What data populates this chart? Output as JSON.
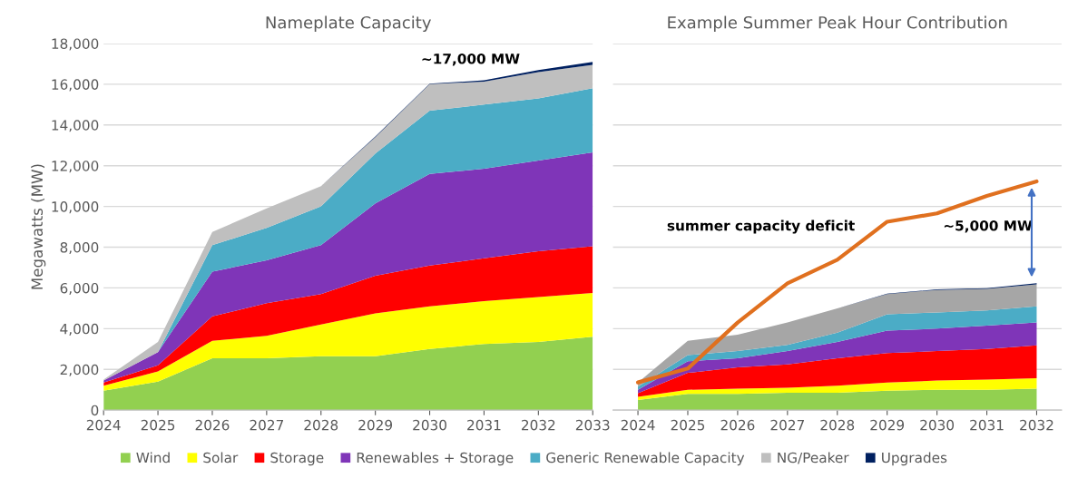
{
  "chart_data": [
    {
      "type": "area",
      "stacked": true,
      "title": "Nameplate Capacity",
      "ylabel": "Megawatts (MW)",
      "categories": [
        "2024",
        "2025",
        "2026",
        "2027",
        "2028",
        "2029",
        "2030",
        "2031",
        "2032",
        "2033"
      ],
      "series": [
        {
          "name": "Wind",
          "color": "#92d050",
          "values": [
            950,
            1400,
            2550,
            2550,
            2650,
            2650,
            3000,
            3250,
            3350,
            3600
          ]
        },
        {
          "name": "Solar",
          "color": "#ffff00",
          "values": [
            250,
            500,
            850,
            1100,
            1550,
            2100,
            2100,
            2100,
            2200,
            2150
          ]
        },
        {
          "name": "Storage",
          "color": "#ff0000",
          "values": [
            150,
            300,
            1200,
            1600,
            1500,
            1850,
            2000,
            2100,
            2250,
            2300
          ]
        },
        {
          "name": "Renewables + Storage",
          "color": "#7f35b8",
          "values": [
            100,
            650,
            2200,
            2100,
            2400,
            3550,
            4500,
            4400,
            4450,
            4600
          ]
        },
        {
          "name": "Generic Renewable Capacity",
          "color": "#4bacc6",
          "values": [
            0,
            0,
            1300,
            1600,
            1900,
            2450,
            3100,
            3150,
            3050,
            3150
          ]
        },
        {
          "name": "NG/Peaker",
          "color": "#bfbfbf",
          "values": [
            50,
            500,
            650,
            950,
            1000,
            800,
            1300,
            1130,
            1300,
            1150
          ]
        },
        {
          "name": "Upgrades",
          "color": "#002060",
          "values": [
            0,
            0,
            0,
            0,
            0,
            30,
            30,
            60,
            100,
            150
          ]
        }
      ],
      "ylim": [
        0,
        18000
      ],
      "yticks": [
        0,
        {
          "value": 2000,
          "label": "2,000"
        },
        {
          "value": 4000,
          "label": "4,000"
        },
        {
          "value": 6000,
          "label": "6,000"
        },
        {
          "value": 8000,
          "label": "8,000"
        },
        {
          "value": 10000,
          "label": "10,000"
        },
        {
          "value": 12000,
          "label": "12,000"
        },
        {
          "value": 14000,
          "label": "14,000"
        },
        {
          "value": 16000,
          "label": "16,000"
        },
        {
          "value": 18000,
          "label": "18,000"
        }
      ],
      "grid": "y",
      "legend": "bottom",
      "annotations": [
        "~17,000 MW"
      ]
    },
    {
      "type": "area",
      "stacked": true,
      "title": "Example Summer Peak Hour Contribution",
      "categories": [
        "2024",
        "2025",
        "2026",
        "2027",
        "2028",
        "2029",
        "2030",
        "2031",
        "2032"
      ],
      "series": [
        {
          "color": "#92d050",
          "values": [
            500,
            800,
            800,
            850,
            850,
            950,
            1000,
            1000,
            1050
          ]
        },
        {
          "color": "#ffff00",
          "values": [
            150,
            200,
            250,
            250,
            350,
            400,
            450,
            500,
            520
          ]
        },
        {
          "color": "#ff0000",
          "values": [
            180,
            830,
            1050,
            1150,
            1350,
            1450,
            1450,
            1500,
            1610
          ]
        },
        {
          "color": "#7f35b8",
          "values": [
            170,
            570,
            450,
            650,
            800,
            1100,
            1100,
            1150,
            1120
          ]
        },
        {
          "color": "#4bacc6",
          "values": [
            150,
            300,
            350,
            300,
            450,
            800,
            800,
            750,
            800
          ]
        },
        {
          "color": "#a6a6a6",
          "values": [
            200,
            700,
            800,
            1100,
            1200,
            1000,
            1100,
            1050,
            1080
          ]
        },
        {
          "color": "#002060",
          "values": [
            0,
            0,
            0,
            0,
            0,
            20,
            30,
            40,
            50
          ]
        },
        {
          "type": "line",
          "color": "#e0701f",
          "values": [
            1360,
            2040,
            4300,
            6230,
            7380,
            9250,
            9660,
            10520,
            11230
          ]
        }
      ],
      "ylim": [
        0,
        18000
      ],
      "yticks": [
        {
          "value": 0,
          "label": null
        },
        {
          "value": 2000,
          "label": null
        },
        {
          "value": 4000,
          "label": null
        },
        {
          "value": 6000,
          "label": null
        },
        {
          "value": 8000,
          "label": null
        },
        {
          "value": 10000,
          "label": null
        },
        {
          "value": 12000,
          "label": null
        },
        {
          "value": 14000,
          "label": null
        },
        {
          "value": 16000,
          "label": null
        },
        {
          "value": 18000,
          "label": null
        }
      ],
      "tick_labels": "x",
      "grid": "y",
      "annotations": [
        "summer capacity deficit",
        "~5,000 MW"
      ]
    }
  ]
}
